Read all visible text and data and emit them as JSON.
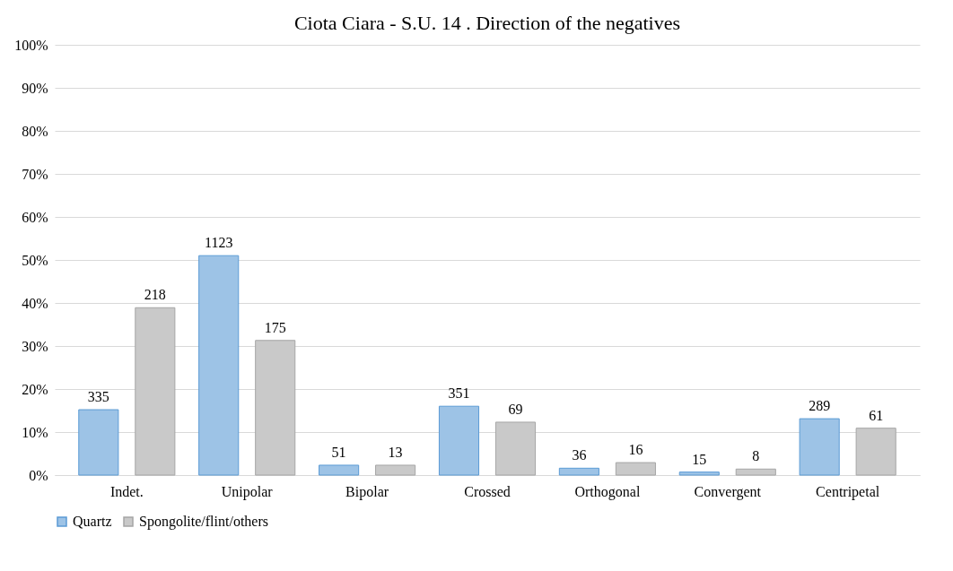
{
  "chart_data": {
    "type": "bar",
    "title": "Ciota Ciara - S.U. 14 . Direction of the negatives",
    "categories": [
      "Indet.",
      "Unipolar",
      "Bipolar",
      "Crossed",
      "Orthogonal",
      "Convergent",
      "Centripetal"
    ],
    "series": [
      {
        "name": "Quartz",
        "color": "#9dc3e6",
        "values": [
          15.2,
          51.0,
          2.3,
          16.0,
          1.6,
          0.7,
          13.1
        ]
      },
      {
        "name": "Spongolite/flint/others",
        "color": "#c9c9c9",
        "values": [
          38.9,
          31.3,
          2.3,
          12.3,
          2.9,
          1.4,
          10.9
        ]
      }
    ],
    "annotations": [
      "335",
      "1123",
      "51",
      "351",
      "36",
      "15",
      "289",
      "218",
      "175",
      "13",
      "69",
      "16",
      "8",
      "61"
    ],
    "ylim": [
      0,
      100
    ],
    "yticks": [
      {
        "value": 0,
        "label": "0%"
      },
      {
        "value": 10,
        "label": "10%"
      },
      {
        "value": 20,
        "label": "20%"
      },
      {
        "value": 30,
        "label": "30%"
      },
      {
        "value": 40,
        "label": "40%"
      },
      {
        "value": 50,
        "label": "50%"
      },
      {
        "value": 60,
        "label": "60%"
      },
      {
        "value": 70,
        "label": "70%"
      },
      {
        "value": 80,
        "label": "80%"
      },
      {
        "value": 90,
        "label": "90%"
      },
      {
        "value": 100,
        "label": "100%"
      }
    ],
    "grid": "y",
    "legend": "bottom"
  }
}
